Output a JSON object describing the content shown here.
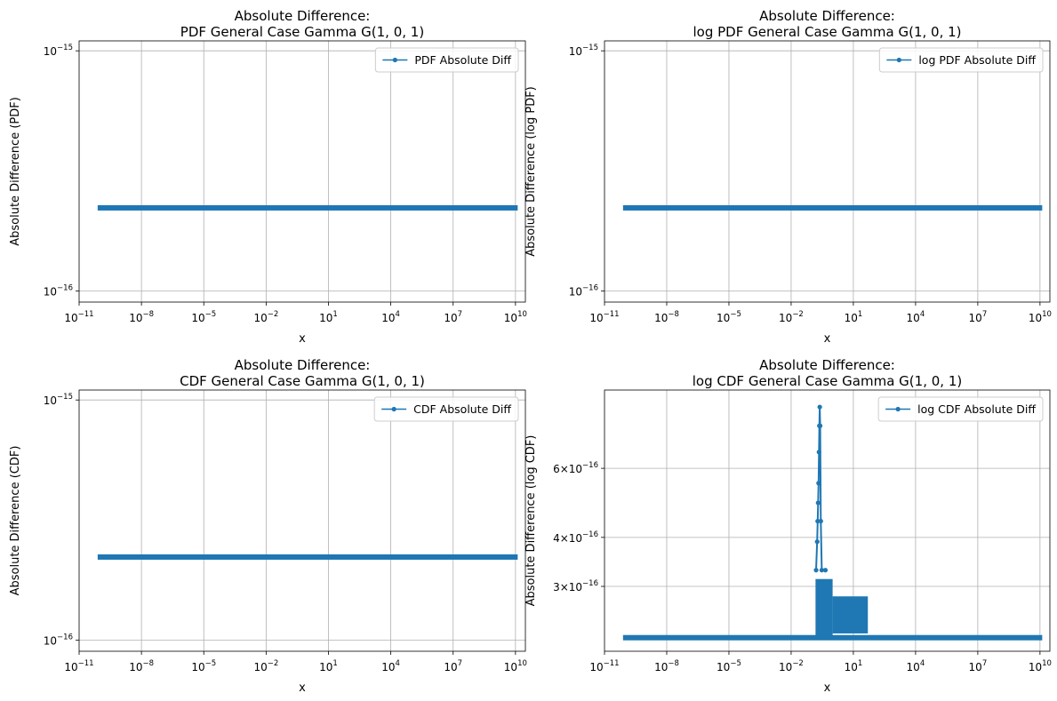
{
  "chart_data": [
    {
      "type": "line",
      "title_line1": "Absolute Difference:",
      "title_line2": "PDF General Case Gamma G(1, 0, 1)",
      "xlabel": "x",
      "ylabel": "Absolute Difference (PDF)",
      "xscale": "log",
      "yscale": "log",
      "xlim": [
        1e-11,
        30000000000.0
      ],
      "ylim": [
        9e-17,
        1.1e-15
      ],
      "x_ticks": [
        {
          "base": "10",
          "exp": "−11"
        },
        {
          "base": "10",
          "exp": "−8"
        },
        {
          "base": "10",
          "exp": "−5"
        },
        {
          "base": "10",
          "exp": "−2"
        },
        {
          "base": "10",
          "exp": "1"
        },
        {
          "base": "10",
          "exp": "4"
        },
        {
          "base": "10",
          "exp": "7"
        },
        {
          "base": "10",
          "exp": "10"
        }
      ],
      "x_tick_values": [
        1e-11,
        1e-08,
        1e-05,
        0.01,
        10,
        10000.0,
        10000000.0,
        10000000000.0
      ],
      "y_ticks": [
        {
          "base": "10",
          "exp": "−16",
          "value": 1e-16
        },
        {
          "base": "10",
          "exp": "−15",
          "value": 1e-15
        }
      ],
      "grid": true,
      "legend_position": "upper-right",
      "series": [
        {
          "name": "PDF Absolute Diff",
          "color": "#1f77b4",
          "x_range": [
            1e-10,
            10000000000.0
          ],
          "y_constant": 2.22e-16
        }
      ]
    },
    {
      "type": "line",
      "title_line1": "Absolute Difference:",
      "title_line2": "log PDF General Case Gamma G(1, 0, 1)",
      "xlabel": "x",
      "ylabel": "Absolute Difference (log PDF)",
      "xscale": "log",
      "yscale": "log",
      "xlim": [
        1e-11,
        30000000000.0
      ],
      "ylim": [
        9e-17,
        1.1e-15
      ],
      "x_ticks": [
        {
          "base": "10",
          "exp": "−11"
        },
        {
          "base": "10",
          "exp": "−8"
        },
        {
          "base": "10",
          "exp": "−5"
        },
        {
          "base": "10",
          "exp": "−2"
        },
        {
          "base": "10",
          "exp": "1"
        },
        {
          "base": "10",
          "exp": "4"
        },
        {
          "base": "10",
          "exp": "7"
        },
        {
          "base": "10",
          "exp": "10"
        }
      ],
      "x_tick_values": [
        1e-11,
        1e-08,
        1e-05,
        0.01,
        10,
        10000.0,
        10000000.0,
        10000000000.0
      ],
      "y_ticks": [
        {
          "base": "10",
          "exp": "−16",
          "value": 1e-16
        },
        {
          "base": "10",
          "exp": "−15",
          "value": 1e-15
        }
      ],
      "grid": true,
      "legend_position": "upper-right",
      "series": [
        {
          "name": "log PDF Absolute Diff",
          "color": "#1f77b4",
          "x_range": [
            1e-10,
            10000000000.0
          ],
          "y_constant": 2.22e-16
        }
      ]
    },
    {
      "type": "line",
      "title_line1": "Absolute Difference:",
      "title_line2": "CDF General Case Gamma G(1, 0, 1)",
      "xlabel": "x",
      "ylabel": "Absolute Difference (CDF)",
      "xscale": "log",
      "yscale": "log",
      "xlim": [
        1e-11,
        30000000000.0
      ],
      "ylim": [
        9e-17,
        1.1e-15
      ],
      "x_ticks": [
        {
          "base": "10",
          "exp": "−11"
        },
        {
          "base": "10",
          "exp": "−8"
        },
        {
          "base": "10",
          "exp": "−5"
        },
        {
          "base": "10",
          "exp": "−2"
        },
        {
          "base": "10",
          "exp": "1"
        },
        {
          "base": "10",
          "exp": "4"
        },
        {
          "base": "10",
          "exp": "7"
        },
        {
          "base": "10",
          "exp": "10"
        }
      ],
      "x_tick_values": [
        1e-11,
        1e-08,
        1e-05,
        0.01,
        10,
        10000.0,
        10000000.0,
        10000000000.0
      ],
      "y_ticks": [
        {
          "base": "10",
          "exp": "−16",
          "value": 1e-16
        },
        {
          "base": "10",
          "exp": "−15",
          "value": 1e-15
        }
      ],
      "grid": true,
      "legend_position": "upper-right",
      "series": [
        {
          "name": "CDF Absolute Diff",
          "color": "#1f77b4",
          "x_range": [
            1e-10,
            10000000000.0
          ],
          "y_constant": 2.22e-16
        }
      ]
    },
    {
      "type": "line",
      "title_line1": "Absolute Difference:",
      "title_line2": "log CDF General Case Gamma G(1, 0, 1)",
      "xlabel": "x",
      "ylabel": "Absolute Difference (log CDF)",
      "xscale": "log",
      "yscale": "log",
      "xlim": [
        1e-11,
        30000000000.0
      ],
      "ylim": [
        2.05e-16,
        9.5e-16
      ],
      "x_ticks": [
        {
          "base": "10",
          "exp": "−11"
        },
        {
          "base": "10",
          "exp": "−8"
        },
        {
          "base": "10",
          "exp": "−5"
        },
        {
          "base": "10",
          "exp": "−2"
        },
        {
          "base": "10",
          "exp": "1"
        },
        {
          "base": "10",
          "exp": "4"
        },
        {
          "base": "10",
          "exp": "7"
        },
        {
          "base": "10",
          "exp": "10"
        }
      ],
      "x_tick_values": [
        1e-11,
        1e-08,
        1e-05,
        0.01,
        10,
        10000.0,
        10000000.0,
        10000000000.0
      ],
      "y_ticks": [
        {
          "base": "3×10",
          "exp": "−16",
          "value": 3e-16
        },
        {
          "base": "4×10",
          "exp": "−16",
          "value": 4e-16
        },
        {
          "base": "6×10",
          "exp": "−16",
          "value": 6e-16
        }
      ],
      "grid": true,
      "legend_position": "upper-right",
      "series": [
        {
          "name": "log CDF Absolute Diff",
          "color": "#1f77b4",
          "x_range": [
            1e-10,
            10000000000.0
          ],
          "y_baseline": 2.22e-16,
          "spike_points": [
            {
              "x": 0.16,
              "y": 3.3e-16
            },
            {
              "x": 0.18,
              "y": 3.9e-16
            },
            {
              "x": 0.19,
              "y": 4.4e-16
            },
            {
              "x": 0.2,
              "y": 4.9e-16
            },
            {
              "x": 0.21,
              "y": 5.5e-16
            },
            {
              "x": 0.22,
              "y": 6.6e-16
            },
            {
              "x": 0.23,
              "y": 7.7e-16
            },
            {
              "x": 0.24,
              "y": 8.6e-16
            },
            {
              "x": 0.25,
              "y": 7.7e-16
            },
            {
              "x": 0.27,
              "y": 4.4e-16
            },
            {
              "x": 0.3,
              "y": 3.3e-16
            },
            {
              "x": 0.45,
              "y": 3.3e-16
            }
          ],
          "noisy_region": [
            {
              "x_from": 0.15,
              "x_to": 1.0,
              "y_low": 2.22e-16,
              "y_high": 3.1e-16
            },
            {
              "x_from": 1.0,
              "x_to": 50,
              "y_low": 2.3e-16,
              "y_high": 2.8e-16
            }
          ]
        }
      ]
    }
  ]
}
